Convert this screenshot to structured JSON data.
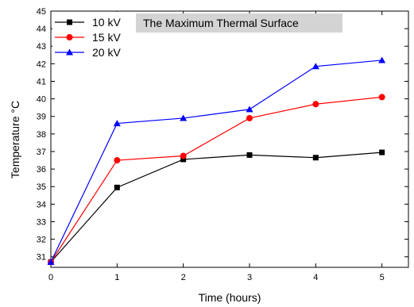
{
  "chart_data": {
    "type": "line",
    "title": "",
    "annotation": "The Maximum Thermal Surface",
    "xlabel": "Time (hours)",
    "ylabel": "Temperature °C",
    "xlim": [
      0,
      5.4
    ],
    "ylim": [
      30.4,
      45
    ],
    "x_ticks": [
      0,
      1,
      2,
      3,
      4,
      5
    ],
    "y_ticks": [
      31,
      32,
      33,
      34,
      35,
      36,
      37,
      38,
      39,
      40,
      41,
      42,
      43,
      44,
      45
    ],
    "grid": false,
    "legend_position": "top-left",
    "x": [
      0,
      1,
      2,
      3,
      4,
      5
    ],
    "series": [
      {
        "name": "10 kV",
        "color": "#000000",
        "marker": "square",
        "values": [
          30.7,
          34.95,
          36.55,
          36.8,
          36.65,
          36.95
        ]
      },
      {
        "name": "15 kV",
        "color": "#ff0000",
        "marker": "circle",
        "values": [
          30.7,
          36.5,
          36.75,
          38.9,
          39.7,
          40.1
        ]
      },
      {
        "name": "20 kV",
        "color": "#0000ff",
        "marker": "triangle",
        "values": [
          30.7,
          38.6,
          38.9,
          39.4,
          41.85,
          42.2
        ]
      }
    ]
  }
}
